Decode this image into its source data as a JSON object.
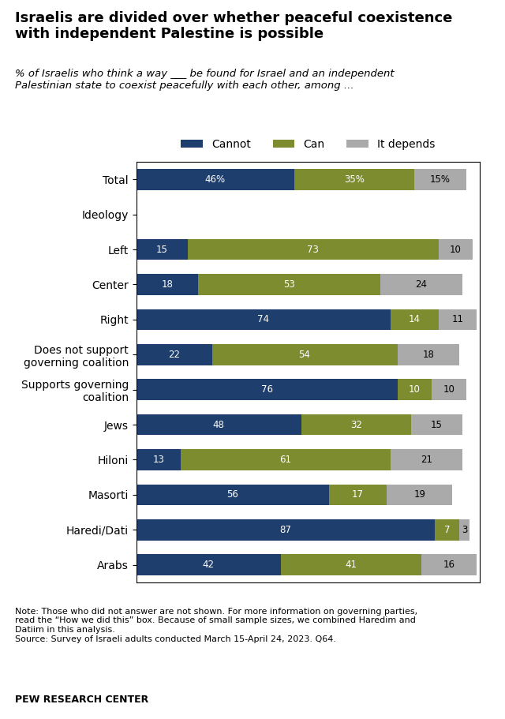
{
  "chart_data": {
    "type": "bar",
    "orientation": "horizontal",
    "stacked": true,
    "title": "Israelis are divided over whether peaceful coexistence\nwith independent Palestine is possible",
    "subtitle": "% of Israelis who think a way ___ be found for Israel and an independent\nPalestinian state to coexist peacefully with each other, among ...",
    "annotations": [
      "Note: Those who did not answer are not shown. For more information on governing parties,\nread the “How we did this” box. Because of small sample sizes, we combined Haredim and\nDatiim in this analysis.\nSource: Survey of Israeli adults conducted March 15-April 24, 2023. Q64.",
      "PEW RESEARCH CENTER"
    ],
    "categories": [
      "Total",
      "Ideology",
      "Left",
      "Center",
      "Right",
      "Does not support\ngoverning coalition",
      "Supports governing\ncoalition",
      "Jews",
      "Hiloni",
      "Masorti",
      "Haredi/Dati",
      "Arabs"
    ],
    "series": [
      {
        "name": "Cannot",
        "color": "#1e3f6e",
        "values": [
          46,
          null,
          15,
          18,
          74,
          22,
          76,
          48,
          13,
          56,
          87,
          42
        ],
        "value_labels": [
          "46%",
          null,
          "15",
          "18",
          "74",
          "22",
          "76",
          "48",
          "13",
          "56",
          "87",
          "42"
        ]
      },
      {
        "name": "Can",
        "color": "#7d8c2f",
        "values": [
          35,
          null,
          73,
          53,
          14,
          54,
          10,
          32,
          61,
          17,
          7,
          41
        ],
        "value_labels": [
          "35%",
          null,
          "73",
          "53",
          "14",
          "54",
          "10",
          "32",
          "61",
          "17",
          "7",
          "41"
        ]
      },
      {
        "name": "It depends",
        "color": "#aaaaaa",
        "values": [
          15,
          null,
          10,
          24,
          11,
          18,
          10,
          15,
          21,
          19,
          3,
          16
        ],
        "value_labels": [
          "15%",
          null,
          "10",
          "24",
          "11",
          "18",
          "10",
          "15",
          "21",
          "19",
          "3",
          "16"
        ]
      }
    ],
    "xlim": [
      0,
      100
    ],
    "data_labels": true,
    "tick_labels": "y",
    "legend": "lower center",
    "grid": false
  }
}
